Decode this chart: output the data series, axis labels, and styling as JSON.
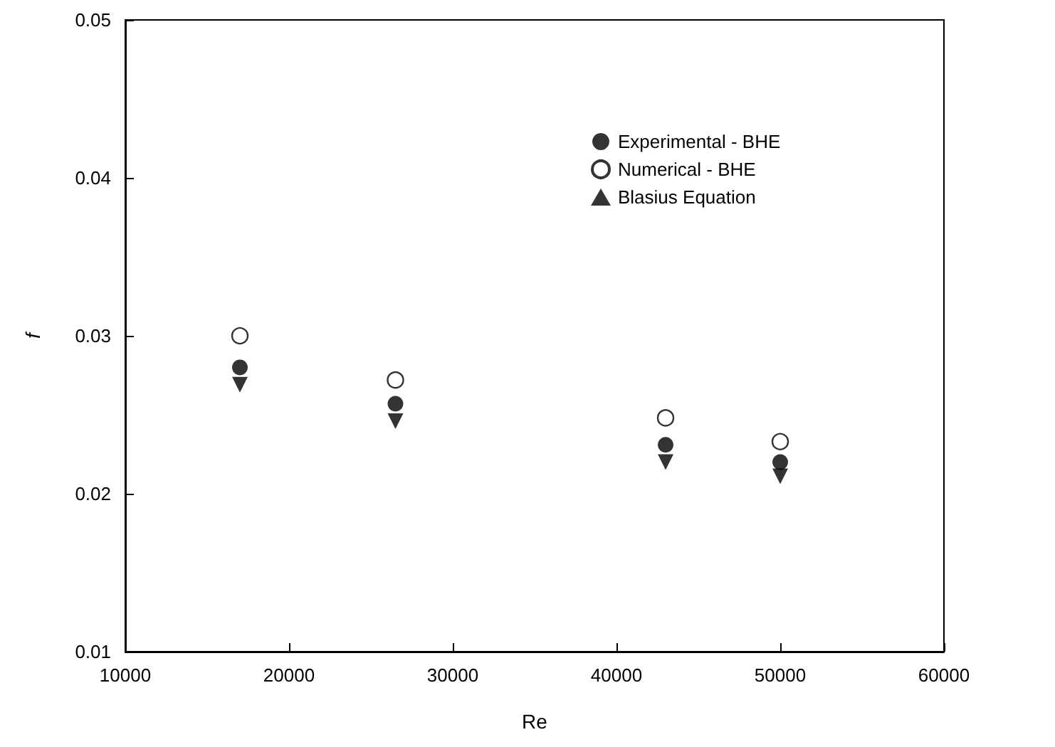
{
  "chart_data": {
    "type": "scatter",
    "xlabel": "Re",
    "ylabel": "f",
    "x": [
      17000,
      26500,
      43000,
      50000
    ],
    "series": [
      {
        "name": "Experimental - BHE",
        "color": "#000000",
        "marker": "circle",
        "values": [
          0.028,
          0.0257,
          0.0231,
          0.022
        ]
      },
      {
        "name": "Numerical - BHE",
        "color": "#000000",
        "marker": "open-circle",
        "values": [
          0.03,
          0.0272,
          0.0248,
          0.0233
        ]
      },
      {
        "name": "Blasius Equation",
        "color": "#000000",
        "marker": "triangle-down",
        "values": [
          0.0269,
          0.0246,
          0.022,
          0.0211
        ]
      }
    ],
    "xlim": [
      10000,
      60000
    ],
    "xticks": [
      10000,
      20000,
      30000,
      40000,
      50000,
      60000
    ],
    "ylim": [
      0.01,
      0.05
    ],
    "yticks": [
      0.01,
      0.02,
      0.03,
      0.04,
      0.05
    ],
    "grid": false,
    "legend": "top right"
  }
}
